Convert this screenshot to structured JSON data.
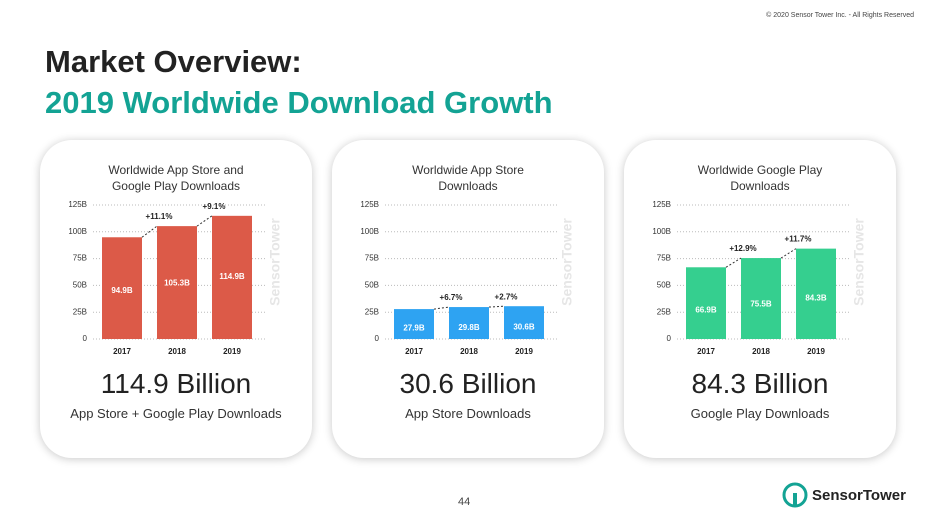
{
  "copyright": "© 2020 Sensor Tower Inc. - All Rights Reserved",
  "title": "Market Overview:",
  "subtitle": "2019 Worldwide Download Growth",
  "page_number": "44",
  "logo": "SensorTower",
  "chart_data": [
    {
      "type": "bar",
      "title": "Worldwide App Store and Google Play Downloads",
      "categories": [
        "2017",
        "2018",
        "2019"
      ],
      "values": [
        94.9,
        105.3,
        114.9
      ],
      "value_labels": [
        "94.9B",
        "105.3B",
        "114.9B"
      ],
      "color": "#dc5a48",
      "annotations": [
        "+11.1%",
        "+9.1%"
      ],
      "ylim": [
        0,
        125
      ],
      "yticks": [
        0,
        {
          "value": 25,
          "label": "25B"
        },
        {
          "value": 50,
          "label": "50B"
        },
        {
          "value": 75,
          "label": "75B"
        },
        {
          "value": 100,
          "label": "100B"
        },
        {
          "value": 125,
          "label": "125B"
        }
      ],
      "grid": true,
      "headline": "114.9 Billion",
      "caption": "App Store + Google Play Downloads"
    },
    {
      "type": "bar",
      "title": "Worldwide App Store Downloads",
      "categories": [
        "2017",
        "2018",
        "2019"
      ],
      "values": [
        27.9,
        29.8,
        30.6
      ],
      "value_labels": [
        "27.9B",
        "29.8B",
        "30.6B"
      ],
      "color": "#2ea3f2",
      "annotations": [
        "+6.7%",
        "+2.7%"
      ],
      "ylim": [
        0,
        125
      ],
      "yticks": [
        0,
        {
          "value": 25,
          "label": "25B"
        },
        {
          "value": 50,
          "label": "50B"
        },
        {
          "value": 75,
          "label": "75B"
        },
        {
          "value": 100,
          "label": "100B"
        },
        {
          "value": 125,
          "label": "125B"
        }
      ],
      "grid": true,
      "headline": "30.6 Billion",
      "caption": "App Store Downloads"
    },
    {
      "type": "bar",
      "title": "Worldwide Google Play Downloads",
      "categories": [
        "2017",
        "2018",
        "2019"
      ],
      "values": [
        66.9,
        75.5,
        84.3
      ],
      "value_labels": [
        "66.9B",
        "75.5B",
        "84.3B"
      ],
      "color": "#35cf8f",
      "annotations": [
        "+12.9%",
        "+11.7%"
      ],
      "ylim": [
        0,
        125
      ],
      "yticks": [
        0,
        {
          "value": 25,
          "label": "25B"
        },
        {
          "value": 50,
          "label": "50B"
        },
        {
          "value": 75,
          "label": "75B"
        },
        {
          "value": 100,
          "label": "100B"
        },
        {
          "value": 125,
          "label": "125B"
        }
      ],
      "grid": true,
      "headline": "84.3 Billion",
      "caption": "Google Play Downloads"
    }
  ]
}
